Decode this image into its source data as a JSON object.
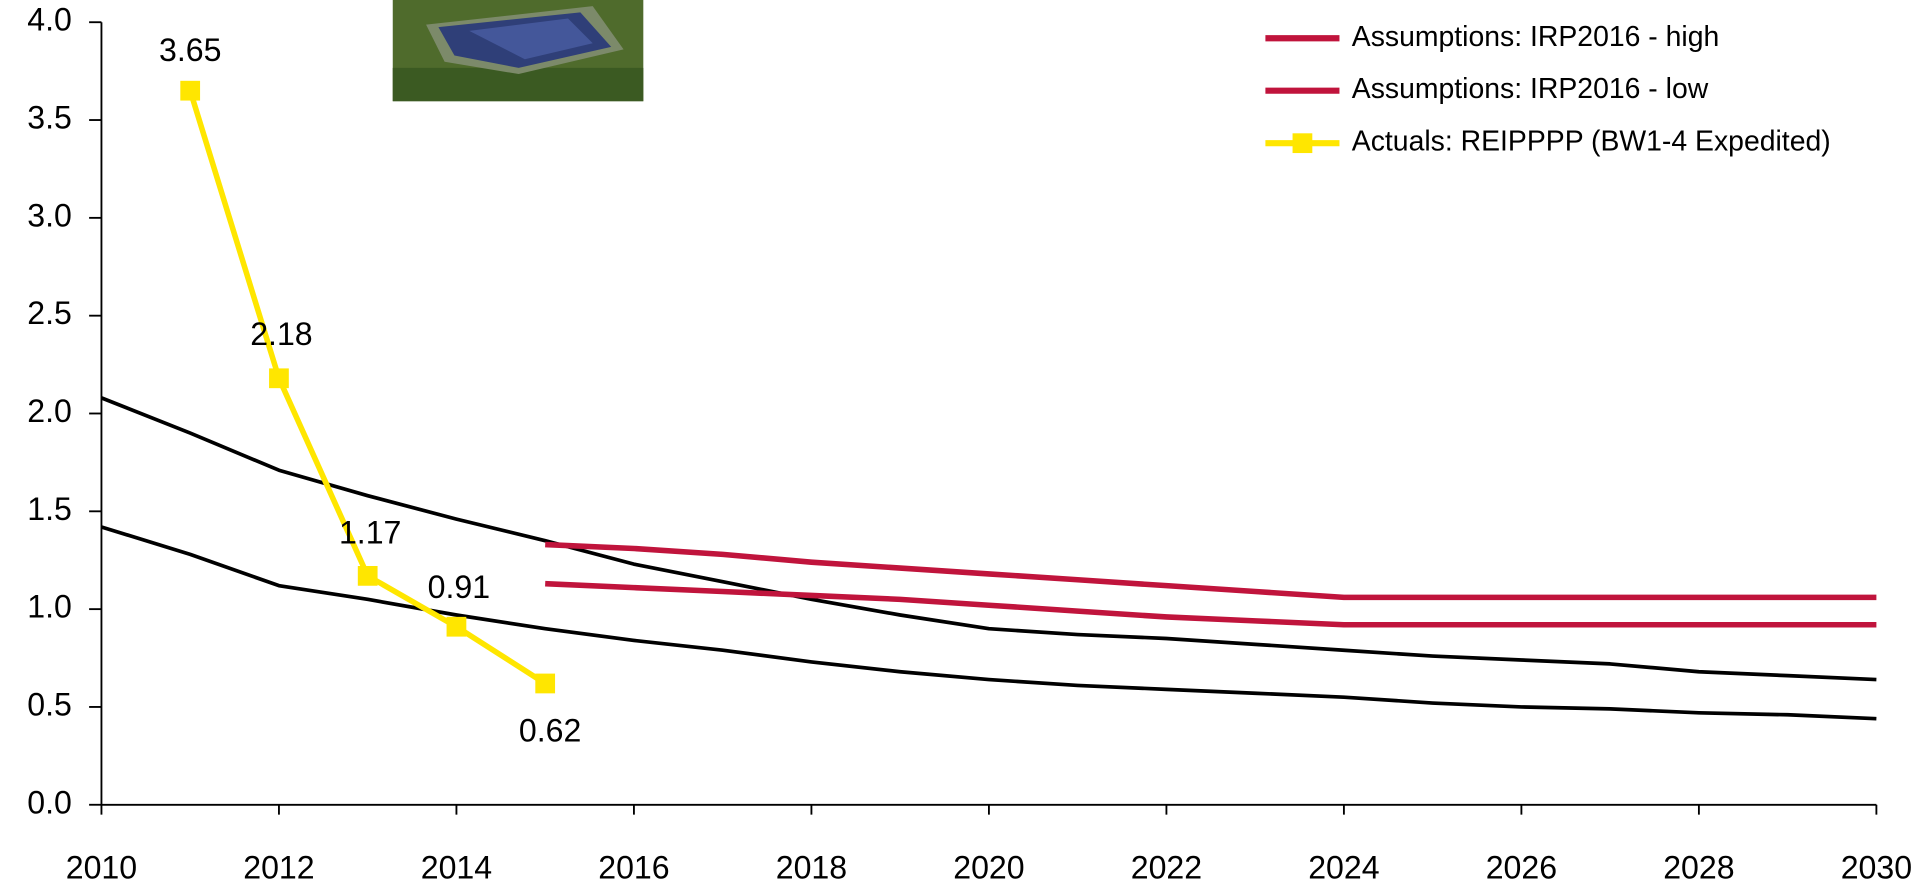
{
  "chart_data": {
    "type": "line",
    "x": [
      2010,
      2011,
      2012,
      2013,
      2014,
      2015,
      2016,
      2017,
      2018,
      2019,
      2020,
      2021,
      2022,
      2023,
      2024,
      2025,
      2026,
      2027,
      2028,
      2029,
      2030
    ],
    "xlim": [
      2010,
      2030
    ],
    "xticks": [
      2010,
      2012,
      2014,
      2016,
      2018,
      2020,
      2022,
      2024,
      2026,
      2028,
      2030
    ],
    "ylim": [
      0,
      4
    ],
    "yticks": [
      {
        "value": 0,
        "label": "0.0"
      },
      {
        "value": 0.5,
        "label": "0.5"
      },
      {
        "value": 1,
        "label": "1.0"
      },
      {
        "value": 1.5,
        "label": "1.5"
      },
      {
        "value": 2,
        "label": "2.0"
      },
      {
        "value": 2.5,
        "label": "2.5"
      },
      {
        "value": 3,
        "label": "3.0"
      },
      {
        "value": 3.5,
        "label": "3.5"
      },
      {
        "value": 4,
        "label": "4.0"
      }
    ],
    "series": [
      {
        "color": "#000000",
        "values": [
          2.08,
          1.9,
          1.71,
          1.58,
          1.46,
          1.35,
          1.23,
          1.14,
          1.05,
          0.97,
          0.9,
          0.87,
          0.85,
          0.82,
          0.79,
          0.76,
          0.74,
          0.72,
          0.68,
          0.66,
          0.64
        ]
      },
      {
        "color": "#000000",
        "values": [
          1.42,
          1.28,
          1.12,
          1.05,
          0.97,
          0.9,
          0.84,
          0.79,
          0.73,
          0.68,
          0.64,
          0.61,
          0.59,
          0.57,
          0.55,
          0.52,
          0.5,
          0.49,
          0.47,
          0.46,
          0.44
        ]
      },
      {
        "name": "Assumptions: IRP2016 - high",
        "color": "#c0143c",
        "values": [
          null,
          null,
          null,
          null,
          null,
          1.33,
          1.31,
          1.28,
          1.24,
          1.21,
          1.18,
          1.15,
          1.12,
          1.09,
          1.06,
          1.06,
          1.06,
          1.06,
          1.06,
          1.06,
          1.06
        ]
      },
      {
        "name": "Assumptions: IRP2016 - low",
        "color": "#c0143c",
        "values": [
          null,
          null,
          null,
          null,
          null,
          1.13,
          1.11,
          1.09,
          1.07,
          1.05,
          1.02,
          0.99,
          0.96,
          0.94,
          0.92,
          0.92,
          0.92,
          0.92,
          0.92,
          0.92,
          0.92
        ]
      },
      {
        "name": "Actuals: REIPPPP (BW1-4 Expedited)",
        "color": "#ffe600",
        "marker": "square",
        "data_labels": true,
        "values": [
          null,
          3.65,
          2.18,
          1.17,
          0.91,
          0.62,
          null,
          null,
          null,
          null,
          null,
          null,
          null,
          null,
          null,
          null,
          null,
          null,
          null,
          null,
          null
        ]
      }
    ]
  }
}
